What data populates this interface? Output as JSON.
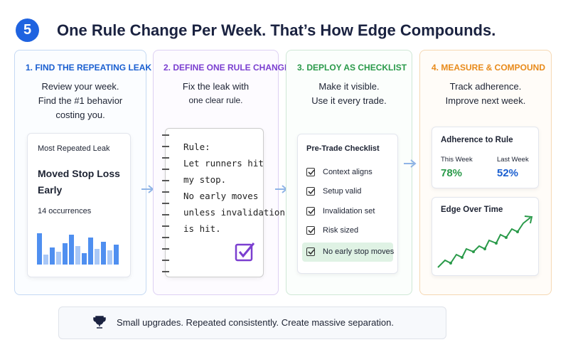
{
  "header": {
    "step": "5",
    "title": "One Rule Change Per Week. That’s How Edge Compounds."
  },
  "panels": [
    {
      "heading": "1. FIND THE REPEATING LEAK",
      "description": [
        "Review your week.",
        "Find the #1 behavior",
        "costing you."
      ],
      "card": {
        "title": "Most Repeated Leak",
        "leak": [
          "Moved Stop Loss",
          "Early"
        ],
        "count": "14 occurrences"
      }
    },
    {
      "heading": "2. DEFINE ONE RULE CHANGE",
      "description": [
        "Fix the leak with",
        "one clear rule."
      ],
      "note": [
        "Rule:",
        "Let runners hit",
        "my stop.",
        "No early moves",
        "unless invalidation",
        "is hit."
      ]
    },
    {
      "heading": "3. DEPLOY AS CHECKLIST",
      "description": [
        "Make it visible.",
        "Use it every trade."
      ],
      "checklist": {
        "title": "Pre-Trade Checklist",
        "items": [
          "Context aligns",
          "Setup valid",
          "Invalidation set",
          "Risk sized",
          "No early stop moves"
        ]
      }
    },
    {
      "heading": "4. MEASURE & COMPOUND",
      "description": [
        "Track adherence.",
        "Improve next week."
      ],
      "adherence": {
        "title": "Adherence to Rule",
        "metrics": [
          {
            "label": "This Week",
            "value": "78%"
          },
          {
            "label": "Last Week",
            "value": "52%"
          }
        ]
      },
      "edge": {
        "title": "Edge Over Time"
      }
    }
  ],
  "footer": "Small upgrades. Repeated consistently. Create massive separation."
}
